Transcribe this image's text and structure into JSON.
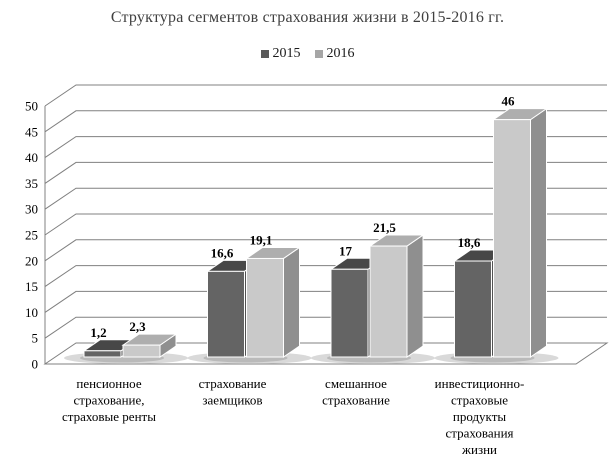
{
  "title": "Структура сегментов страхования жизни в 2015-2016 гг.",
  "legend": {
    "items": [
      {
        "label": "2015",
        "color": "#595959"
      },
      {
        "label": "2016",
        "color": "#a6a6a6"
      }
    ],
    "position": "top"
  },
  "chart_data": {
    "type": "bar",
    "style": "3d-clustered-column",
    "title": "Структура сегментов страхования жизни в 2015-2016 гг.",
    "categories": [
      "пенсионное страхование, страховые ренты",
      "страхование заемщиков",
      "смешанное страхование",
      "инвестиционно-страховые продукты страхования жизни"
    ],
    "category_lines": [
      [
        "пенсионное",
        "страхование,",
        "страховые ренты"
      ],
      [
        "страхование",
        "заемщиков"
      ],
      [
        "смешанное",
        "страхование"
      ],
      [
        "инвестиционно-",
        "страховые",
        "продукты",
        "страхования",
        "жизни"
      ]
    ],
    "series": [
      {
        "name": "2015",
        "values": [
          1.2,
          16.6,
          17,
          18.6
        ],
        "labels": [
          "1,2",
          "16,6",
          "17",
          "18,6"
        ],
        "legend_color": "#595959",
        "color_front": "#646464",
        "color_top": "#474747",
        "color_side": "#525252"
      },
      {
        "name": "2016",
        "values": [
          2.3,
          19.1,
          21.5,
          46
        ],
        "labels": [
          "2,3",
          "19,1",
          "21,5",
          "46"
        ],
        "legend_color": "#a6a6a6",
        "color_front": "#c9c9c9",
        "color_top": "#aeaeae",
        "color_side": "#8f8f8f"
      }
    ],
    "y_axis": {
      "min": 0,
      "max": 50,
      "step": 5,
      "ticks": [
        0,
        5,
        10,
        15,
        20,
        25,
        30,
        35,
        40,
        45,
        50
      ]
    },
    "xlabel": "",
    "ylabel": "",
    "ylim": [
      0,
      50
    ],
    "grid": true,
    "legend_position": "top",
    "colors": {
      "gridline": "#808080",
      "label_text": "#000000",
      "title_text": "#3f3f3f"
    }
  }
}
